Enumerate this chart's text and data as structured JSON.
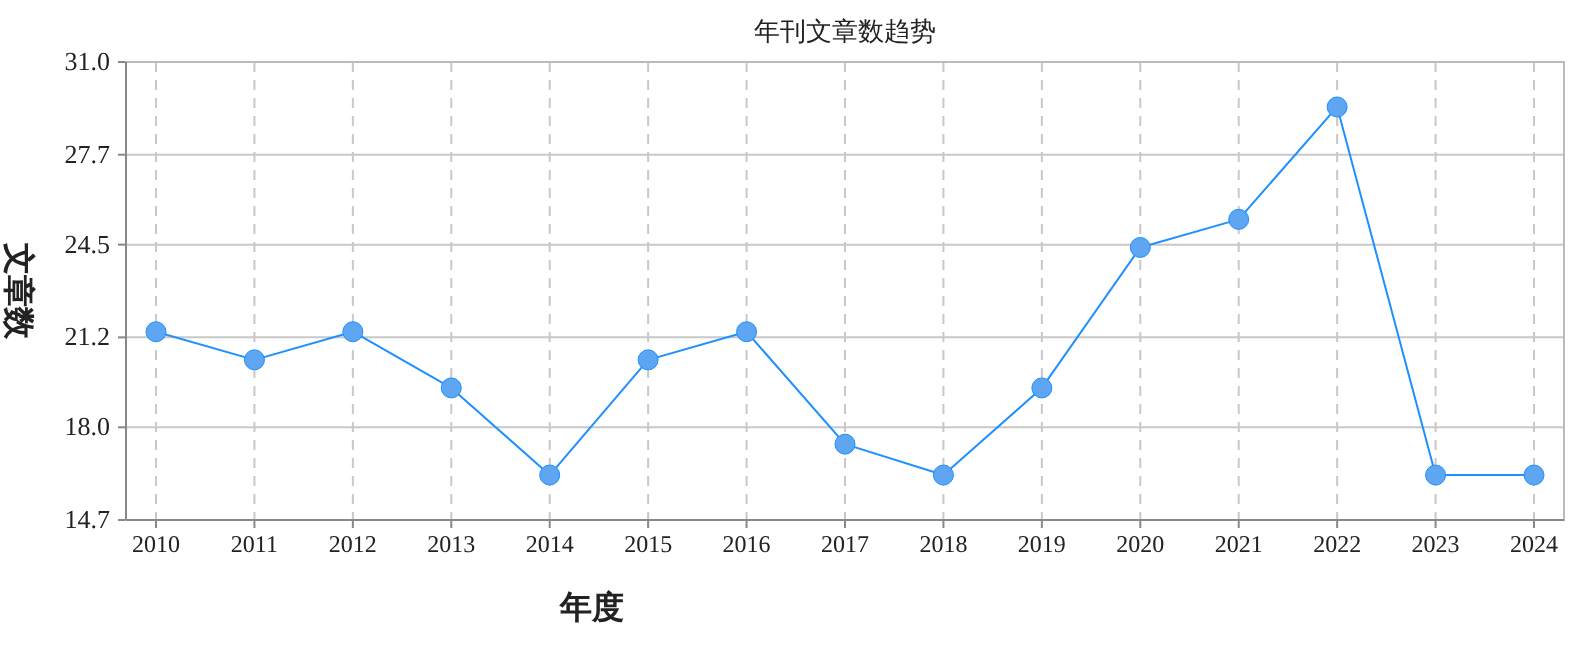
{
  "chart_data": {
    "type": "line",
    "title": "年刊文章数趋势",
    "xlabel": "年度",
    "ylabel": "文章数",
    "categories": [
      "2010",
      "2011",
      "2012",
      "2013",
      "2014",
      "2015",
      "2016",
      "2017",
      "2018",
      "2019",
      "2020",
      "2021",
      "2022",
      "2023",
      "2024"
    ],
    "series": [
      {
        "color": "#1e90ff",
        "values": [
          21.4,
          20.4,
          21.4,
          19.4,
          16.3,
          20.4,
          21.4,
          17.4,
          16.3,
          19.4,
          24.4,
          25.4,
          29.4,
          16.3,
          16.3
        ]
      }
    ],
    "ylim": [
      14.7,
      31.0
    ],
    "yticks": [
      14.7,
      {
        "value": 18.0,
        "label": "18.0"
      },
      21.2,
      24.5,
      27.7,
      {
        "value": 31.0,
        "label": "31.0"
      }
    ],
    "grid": true,
    "marker": "circle"
  }
}
